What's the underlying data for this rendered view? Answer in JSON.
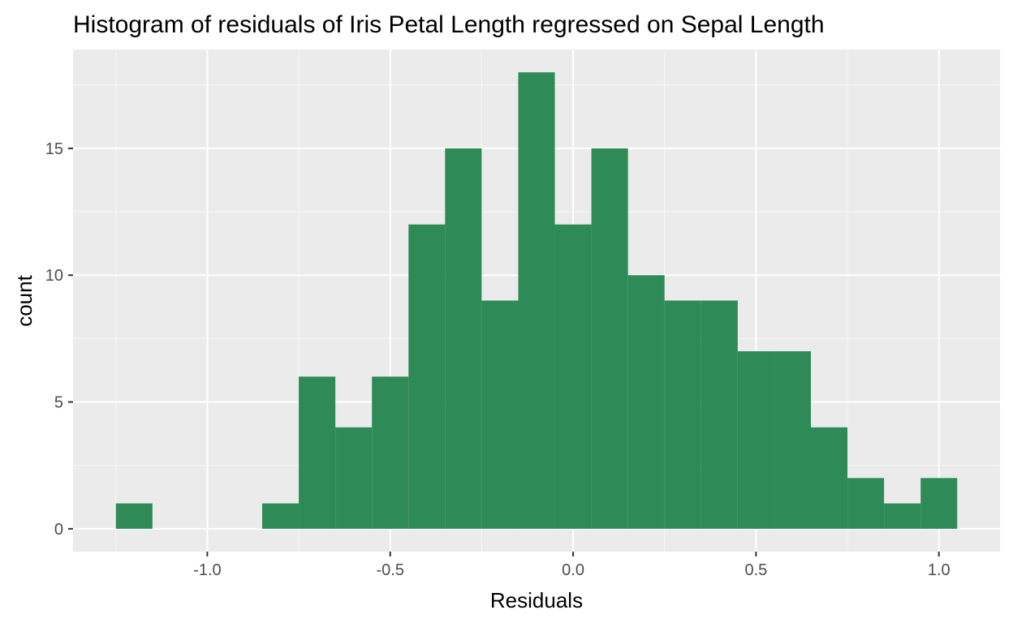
{
  "chart_data": {
    "type": "bar",
    "title": "Histogram of residuals of Iris Petal Length regressed on Sepal Length",
    "xlabel": "Residuals",
    "ylabel": "count",
    "bins": [
      {
        "x0": -1.25,
        "x1": -1.15,
        "count": 1
      },
      {
        "x0": -1.15,
        "x1": -1.05,
        "count": 0
      },
      {
        "x0": -1.05,
        "x1": -0.95,
        "count": 0
      },
      {
        "x0": -0.95,
        "x1": -0.85,
        "count": 0
      },
      {
        "x0": -0.85,
        "x1": -0.75,
        "count": 1
      },
      {
        "x0": -0.75,
        "x1": -0.65,
        "count": 6
      },
      {
        "x0": -0.65,
        "x1": -0.55,
        "count": 4
      },
      {
        "x0": -0.55,
        "x1": -0.45,
        "count": 6
      },
      {
        "x0": -0.45,
        "x1": -0.35,
        "count": 12
      },
      {
        "x0": -0.35,
        "x1": -0.25,
        "count": 15
      },
      {
        "x0": -0.25,
        "x1": -0.15,
        "count": 9
      },
      {
        "x0": -0.15,
        "x1": -0.05,
        "count": 18
      },
      {
        "x0": -0.05,
        "x1": 0.05,
        "count": 12
      },
      {
        "x0": 0.05,
        "x1": 0.15,
        "count": 15
      },
      {
        "x0": 0.15,
        "x1": 0.25,
        "count": 10
      },
      {
        "x0": 0.25,
        "x1": 0.35,
        "count": 9
      },
      {
        "x0": 0.35,
        "x1": 0.45,
        "count": 9
      },
      {
        "x0": 0.45,
        "x1": 0.55,
        "count": 7
      },
      {
        "x0": 0.55,
        "x1": 0.65,
        "count": 7
      },
      {
        "x0": 0.65,
        "x1": 0.75,
        "count": 4
      },
      {
        "x0": 0.75,
        "x1": 0.85,
        "count": 2
      },
      {
        "x0": 0.85,
        "x1": 0.95,
        "count": 1
      },
      {
        "x0": 0.95,
        "x1": 1.05,
        "count": 2
      }
    ],
    "x_ticks": [
      {
        "value": -1.0,
        "label": "-1.0"
      },
      {
        "value": -0.5,
        "label": "-0.5"
      },
      {
        "value": 0.0,
        "label": "0.0"
      },
      {
        "value": 0.5,
        "label": "0.5"
      },
      {
        "value": 1.0,
        "label": "1.0"
      }
    ],
    "y_ticks": [
      {
        "value": 0,
        "label": "0"
      },
      {
        "value": 5,
        "label": "5"
      },
      {
        "value": 10,
        "label": "10"
      },
      {
        "value": 15,
        "label": "15"
      }
    ],
    "xlim": [
      -1.367,
      1.167
    ],
    "ylim": [
      -0.9,
      18.9
    ],
    "grid": true,
    "legend": "none",
    "colors": {
      "bar_fill": "#2E8B57",
      "panel_background": "#EBEBEB",
      "grid_major": "#FFFFFF",
      "grid_minor": "#F7F7F7",
      "tick_mark": "#333333",
      "tick_label": "#4D4D4D"
    }
  }
}
